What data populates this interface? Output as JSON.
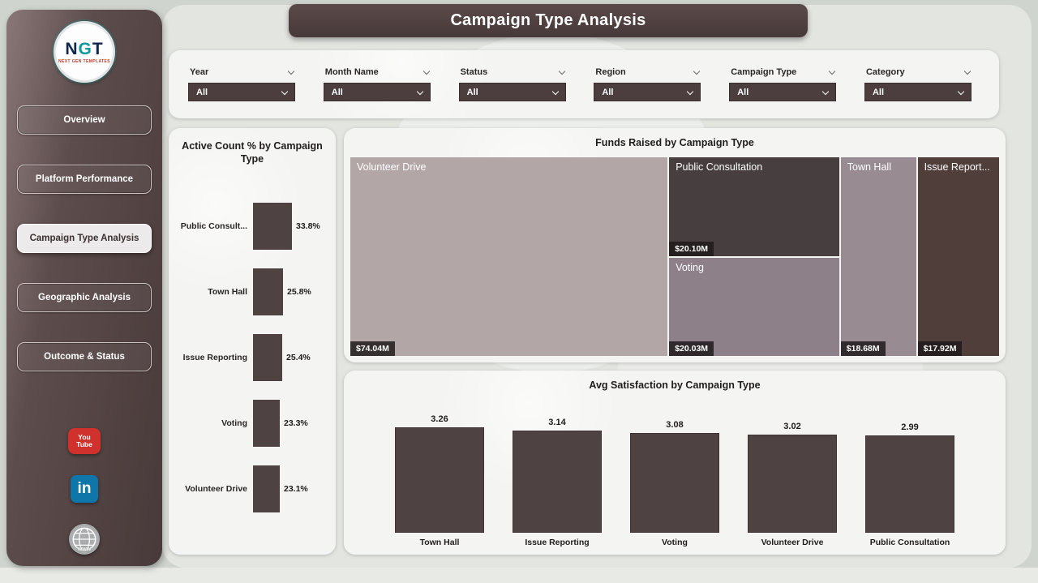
{
  "header": {
    "title": "Campaign Type Analysis"
  },
  "sidebar": {
    "logo": {
      "letter_n": "N",
      "letter_g": "G",
      "letter_t": "T",
      "subtext": "NEXT GEN TEMPLATES"
    },
    "items": [
      {
        "label": "Overview",
        "active": false
      },
      {
        "label": "Platform Performance",
        "active": false
      },
      {
        "label": "Campaign Type Analysis",
        "active": true
      },
      {
        "label": "Geographic Analysis",
        "active": false
      },
      {
        "label": "Outcome & Status",
        "active": false
      }
    ],
    "social": {
      "youtube": {
        "line1": "You",
        "line2": "Tube"
      },
      "linkedin": {
        "text": "in"
      },
      "website": {
        "text": "www"
      }
    }
  },
  "filters": [
    {
      "label": "Year",
      "value": "All"
    },
    {
      "label": "Month Name",
      "value": "All"
    },
    {
      "label": "Status",
      "value": "All"
    },
    {
      "label": "Region",
      "value": "All"
    },
    {
      "label": "Campaign Type",
      "value": "All"
    },
    {
      "label": "Category",
      "value": "All"
    }
  ],
  "chart_data": [
    {
      "type": "bar",
      "orientation": "horizontal",
      "title": "Active Count % by Campaign Type",
      "categories": [
        "Public Consult...",
        "Town Hall",
        "Issue Reporting",
        "Voting",
        "Volunteer Drive"
      ],
      "values": [
        33.8,
        25.8,
        25.4,
        23.3,
        23.1
      ],
      "value_labels": [
        "33.8%",
        "25.8%",
        "25.4%",
        "23.3%",
        "23.1%"
      ],
      "unit": "percent",
      "bar_color": "#4e4243"
    },
    {
      "type": "treemap",
      "title": "Funds Raised by Campaign Type",
      "unit": "USD millions",
      "items": [
        {
          "label": "Volunteer Drive",
          "value": 74.04,
          "value_label": "$74.04M",
          "color": "#b3a6a6"
        },
        {
          "label": "Public Consultation",
          "value": 20.1,
          "value_label": "$20.10M",
          "color": "#463e3f"
        },
        {
          "label": "Voting",
          "value": 20.03,
          "value_label": "$20.03M",
          "color": "#8d8088"
        },
        {
          "label": "Town Hall",
          "value": 18.68,
          "value_label": "$18.68M",
          "color": "#998b92"
        },
        {
          "label": "Issue Report...",
          "value": 17.92,
          "value_label": "$17.92M",
          "color": "#4f3e3a"
        }
      ]
    },
    {
      "type": "bar",
      "orientation": "vertical",
      "title": "Avg Satisfaction by Campaign Type",
      "categories": [
        "Town Hall",
        "Issue Reporting",
        "Voting",
        "Volunteer Drive",
        "Public Consultation"
      ],
      "values": [
        3.26,
        3.14,
        3.08,
        3.02,
        2.99
      ],
      "value_labels": [
        "3.26",
        "3.14",
        "3.08",
        "3.02",
        "2.99"
      ],
      "bar_color": "#4e4243"
    }
  ],
  "colors": {
    "page_bg": "#cfd4cf",
    "panel_bg": "#f4f5f2",
    "sidebar_dark": "#4b3d3d",
    "accent_dark": "#4e4243",
    "youtube_red": "#d0312d",
    "linkedin_blue": "#0e76a8",
    "logo_teal": "#0d9a9a"
  }
}
